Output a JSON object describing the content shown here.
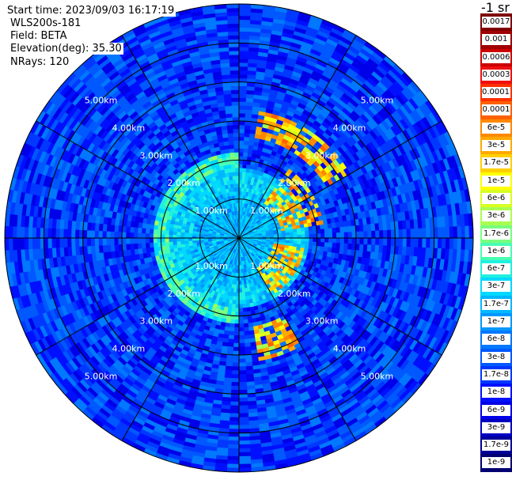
{
  "header": {
    "start_time": "Start time: 2023/09/03 16:17:19",
    "instrument": "WLS200s-181",
    "field": "Field: BETA",
    "elevation": "Elevation(deg): 35.30",
    "nrays": "NRays: 120"
  },
  "colorbar": {
    "unit_label": "-1 sr",
    "levels": [
      "0.0017",
      "0.001",
      "0.0006",
      "0.0003",
      "0.00017",
      "0.0001",
      "6e-5",
      "3e-5",
      "1.7e-5",
      "1e-5",
      "6e-6",
      "3e-6",
      "1.7e-6",
      "1e-6",
      "6e-7",
      "3e-7",
      "1.7e-7",
      "1e-7",
      "6e-8",
      "3e-8",
      "1.7e-8",
      "1e-8",
      "6e-9",
      "3e-9",
      "1.7e-9",
      "1e-9"
    ],
    "colors": [
      "#7f0000",
      "#a00000",
      "#cc0000",
      "#ee1010",
      "#ff3000",
      "#ff6000",
      "#ff8800",
      "#ffaa00",
      "#ffd000",
      "#ffff00",
      "#d8ff20",
      "#a8ff50",
      "#78ff80",
      "#48ffb0",
      "#20f0e0",
      "#00d8ff",
      "#00b8ff",
      "#0098ff",
      "#0078ff",
      "#0058ff",
      "#0038ff",
      "#0010ff",
      "#0000e8",
      "#0000c0",
      "#000098",
      "#000070"
    ]
  },
  "chart_data": {
    "type": "heatmap",
    "projection": "polar PPI",
    "field": "BETA",
    "elevation_deg": 35.3,
    "nrays": 120,
    "range_rings_km": [
      1,
      2,
      3,
      4,
      5
    ],
    "range_ring_labels": [
      "1.00km",
      "2.00km",
      "3.00km",
      "4.00km",
      "5.00km"
    ],
    "azimuth_lines_deg": [
      0,
      30,
      60,
      90,
      120,
      150,
      180,
      210,
      240,
      270,
      300,
      330
    ],
    "max_range_km": 6.0,
    "features": [
      {
        "description": "strong return arc",
        "azimuth_deg": [
          10,
          60
        ],
        "range_km": [
          2.6,
          3.3
        ],
        "level": "1e-5 to 1e-4"
      },
      {
        "description": "strong return arc",
        "azimuth_deg": [
          35,
          80
        ],
        "range_km": [
          1.1,
          2.2
        ],
        "level": "1e-5 to 1e-4"
      },
      {
        "description": "strong return arc",
        "azimuth_deg": [
          100,
          150
        ],
        "range_km": [
          0.9,
          1.7
        ],
        "level": "1e-5 to 1e-4"
      },
      {
        "description": "strong return arc",
        "azimuth_deg": [
          150,
          170
        ],
        "range_km": [
          2.3,
          3.2
        ],
        "level": "1e-5 to 1e-4"
      },
      {
        "description": "moderate ring",
        "azimuth_deg": [
          180,
          360
        ],
        "range_km": [
          1.9,
          2.2
        ],
        "level": "1e-6 to 6e-6"
      },
      {
        "description": "inner disk",
        "range_km": [
          0,
          1.8
        ],
        "level": "1e-7 to 1e-6"
      },
      {
        "description": "background",
        "range_km": [
          2.2,
          6.0
        ],
        "level": "1e-8 to 1e-7"
      }
    ]
  }
}
